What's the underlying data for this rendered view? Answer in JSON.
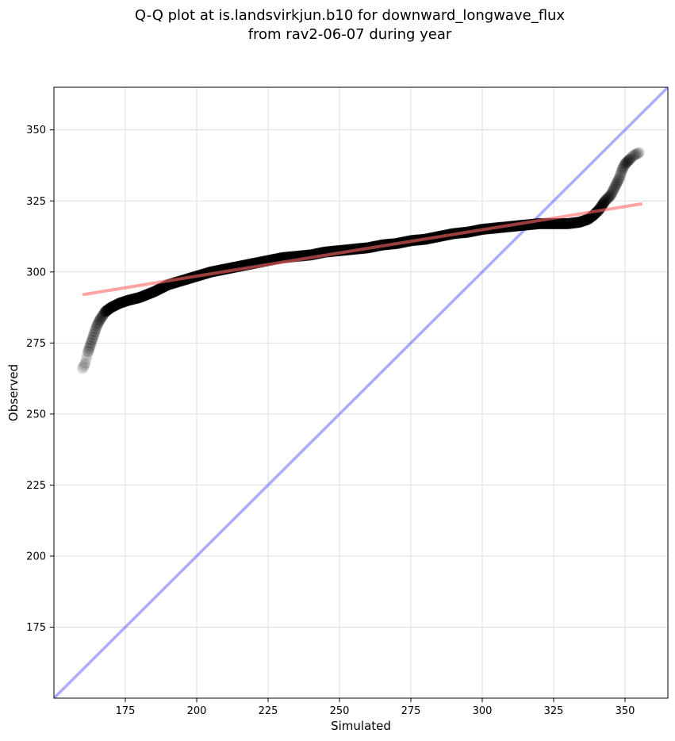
{
  "chart_data": {
    "type": "scatter",
    "title_line1": "Q-Q plot at is.landsvirkjun.b10 for downward_longwave_flux",
    "title_line2": "from rav2-06-07 during year",
    "xlabel": "Simulated",
    "ylabel": "Observed",
    "xlim": [
      150,
      365
    ],
    "ylim": [
      150,
      365
    ],
    "xticks": [
      175,
      200,
      225,
      250,
      275,
      300,
      325,
      350
    ],
    "yticks": [
      175,
      200,
      225,
      250,
      275,
      300,
      325,
      350
    ],
    "grid": true,
    "colors": {
      "points": "#000000",
      "fit_line": "#ff6666",
      "identity_line": "#6666ff",
      "grid": "#dddddd"
    },
    "quantile_curve": [
      [
        160,
        266
      ],
      [
        161,
        268
      ],
      [
        162,
        272
      ],
      [
        163,
        275
      ],
      [
        164,
        278
      ],
      [
        165,
        281
      ],
      [
        166,
        283
      ],
      [
        167,
        284.5
      ],
      [
        168,
        286
      ],
      [
        170,
        287.5
      ],
      [
        173,
        289
      ],
      [
        176,
        290
      ],
      [
        180,
        291
      ],
      [
        185,
        293
      ],
      [
        190,
        295.5
      ],
      [
        195,
        297
      ],
      [
        200,
        298.5
      ],
      [
        205,
        300
      ],
      [
        210,
        301
      ],
      [
        215,
        302
      ],
      [
        220,
        303
      ],
      [
        225,
        304
      ],
      [
        230,
        305
      ],
      [
        235,
        305.5
      ],
      [
        240,
        306
      ],
      [
        245,
        307
      ],
      [
        250,
        307.5
      ],
      [
        255,
        308
      ],
      [
        260,
        308.5
      ],
      [
        265,
        309.5
      ],
      [
        270,
        310
      ],
      [
        275,
        311
      ],
      [
        280,
        311.5
      ],
      [
        285,
        312.5
      ],
      [
        290,
        313.5
      ],
      [
        295,
        314
      ],
      [
        300,
        315
      ],
      [
        305,
        315.5
      ],
      [
        310,
        316
      ],
      [
        315,
        316.5
      ],
      [
        320,
        317
      ],
      [
        325,
        317
      ],
      [
        330,
        317
      ],
      [
        334,
        317.5
      ],
      [
        337,
        318.5
      ],
      [
        339,
        320
      ],
      [
        341,
        322
      ],
      [
        343,
        325
      ],
      [
        345,
        327
      ],
      [
        346,
        329
      ],
      [
        347,
        331
      ],
      [
        348,
        333
      ],
      [
        349,
        336
      ],
      [
        350,
        338
      ],
      [
        351,
        339
      ],
      [
        352,
        340
      ],
      [
        353,
        341
      ],
      [
        355,
        342
      ]
    ],
    "fit_line": [
      [
        160,
        292
      ],
      [
        356,
        324
      ]
    ],
    "identity_line": [
      [
        150,
        150
      ],
      [
        365,
        365
      ]
    ]
  }
}
